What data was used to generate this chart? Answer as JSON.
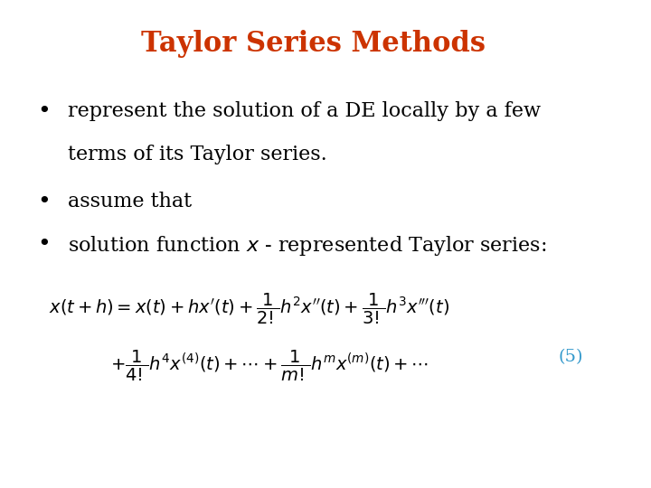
{
  "title": "Taylor Series Methods",
  "title_color": "#CC3300",
  "title_fontsize": 22,
  "bg_color": "#FFFFFF",
  "bullet_color": "#000000",
  "bullet_fontsize": 16,
  "bullet1": "represent the solution of a DE locally by a few",
  "bullet1b": "    terms of its Taylor series.",
  "bullet2": "assume that",
  "bullet3": "solution function $x$ - represented Taylor series:",
  "formula_line1": "$x(t + h) = x(t) + hx'(t) + \\dfrac{1}{2!}h^2x''(t) + \\dfrac{1}{3!}h^3x'''(t)$",
  "formula_line2": "$+ \\dfrac{1}{4!}h^4x^{(4)}(t) + \\cdots + \\dfrac{1}{m!}h^m x^{(m)}(t) + \\cdots$",
  "formula_color": "#000000",
  "eq_number": "(5)",
  "eq_number_color": "#3399CC",
  "formula_fontsize": 14
}
